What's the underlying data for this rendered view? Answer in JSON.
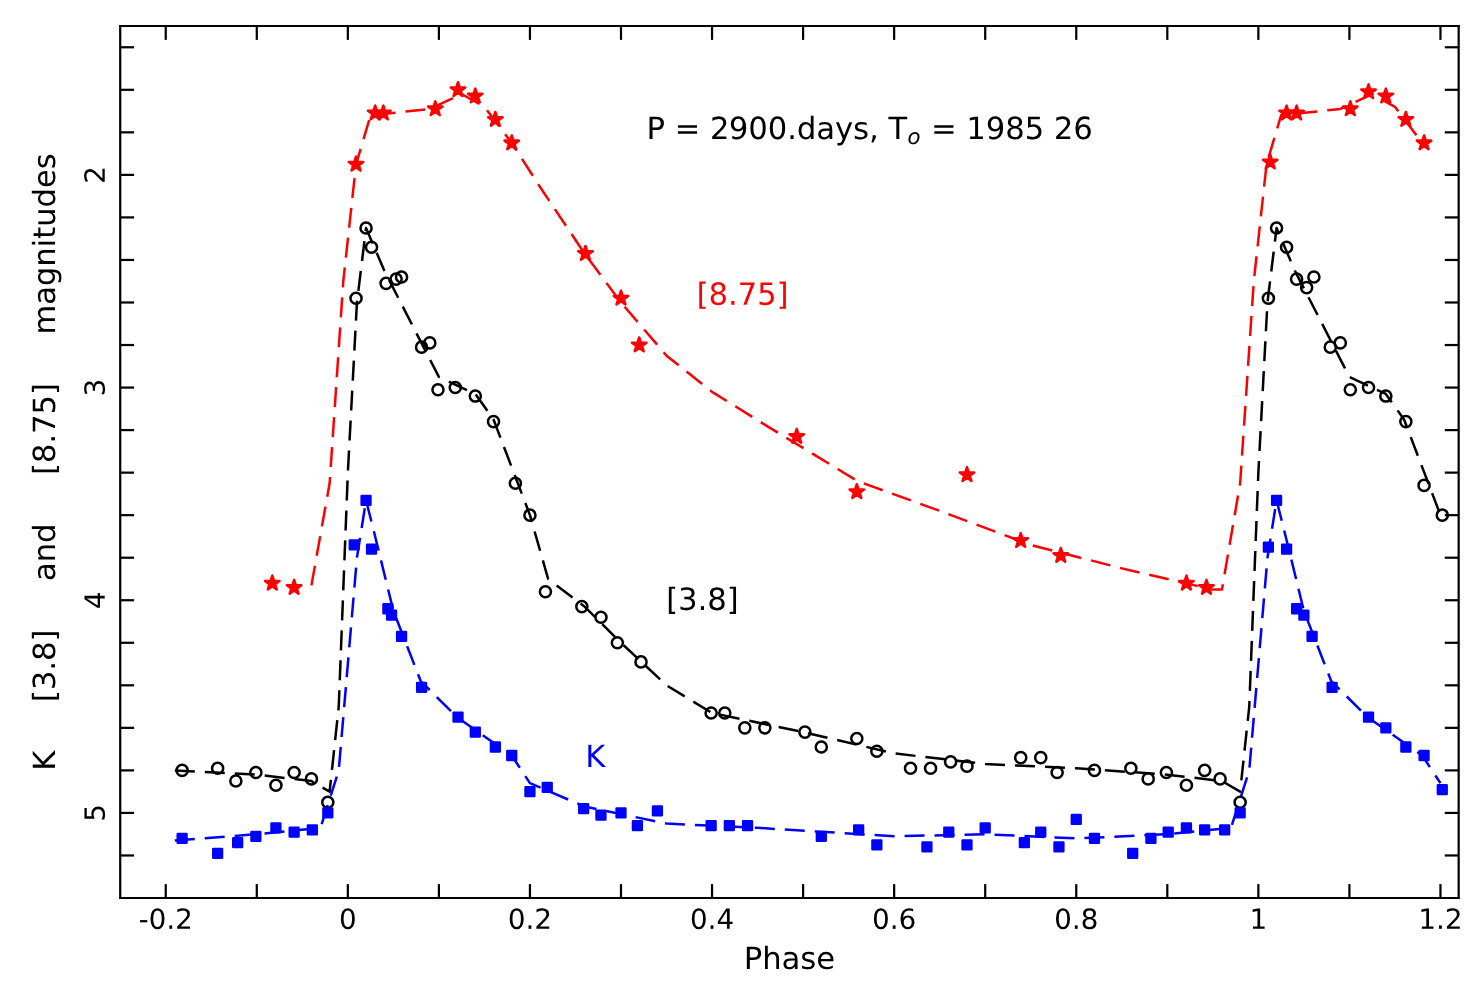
{
  "chart_data": {
    "type": "scatter",
    "xlabel": "Phase",
    "ylabel": "K     [3.8]     and     [8.75]     magnitudes",
    "xlim": [
      -0.25,
      1.22
    ],
    "ylim": [
      5.4,
      1.3
    ],
    "xticks": [
      -0.2,
      {
        "value": -0.1,
        "label": null
      },
      0,
      {
        "value": 0.1,
        "label": null
      },
      0.2,
      {
        "value": 0.3,
        "label": null
      },
      0.4,
      {
        "value": 0.5,
        "label": null
      },
      0.6,
      {
        "value": 0.7,
        "label": null
      },
      0.8,
      {
        "value": 0.9,
        "label": null
      },
      1,
      {
        "value": 1.1,
        "label": null
      },
      1.2
    ],
    "yticks": [
      {
        "value": 1.4,
        "label": null
      },
      {
        "value": 1.6,
        "label": null
      },
      {
        "value": 1.8,
        "label": null
      },
      2,
      {
        "value": 2.2,
        "label": null
      },
      {
        "value": 2.4,
        "label": null
      },
      {
        "value": 2.6,
        "label": null
      },
      {
        "value": 2.8,
        "label": null
      },
      3,
      {
        "value": 3.2,
        "label": null
      },
      {
        "value": 3.4,
        "label": null
      },
      {
        "value": 3.6,
        "label": null
      },
      {
        "value": 3.8,
        "label": null
      },
      4,
      {
        "value": 4.2,
        "label": null
      },
      {
        "value": 4.4,
        "label": null
      },
      {
        "value": 4.6,
        "label": null
      },
      {
        "value": 4.8,
        "label": null
      },
      5,
      {
        "value": 5.2,
        "label": null
      }
    ],
    "grid": false,
    "series": [
      {
        "name": "[8.75]",
        "color": "#ff0000",
        "marker": "star",
        "x": [
          -0.083,
          -0.059,
          0.009,
          0.03,
          0.039,
          0.096,
          0.121,
          0.14,
          0.162,
          0.18,
          0.261,
          0.3,
          0.32,
          0.493,
          0.559,
          0.68,
          0.739,
          0.783,
          0.921,
          0.943,
          1.013,
          1.031,
          1.042,
          1.101,
          1.121,
          1.14,
          1.162,
          1.182
        ],
        "values": [
          3.92,
          3.94,
          1.95,
          1.71,
          1.71,
          1.69,
          1.6,
          1.63,
          1.74,
          1.85,
          2.37,
          2.58,
          2.8,
          3.23,
          3.49,
          3.41,
          3.72,
          3.79,
          3.92,
          3.94,
          1.94,
          1.71,
          1.71,
          1.69,
          1.61,
          1.63,
          1.74,
          1.85
        ]
      },
      {
        "name": "[3.8]",
        "color": "#000000",
        "marker": "circle",
        "x": [
          -0.182,
          -0.143,
          -0.123,
          -0.101,
          -0.079,
          -0.059,
          -0.04,
          -0.022,
          0.009,
          0.02,
          0.026,
          0.042,
          0.053,
          0.059,
          0.081,
          0.09,
          0.099,
          0.118,
          0.14,
          0.16,
          0.184,
          0.2,
          0.217,
          0.257,
          0.278,
          0.296,
          0.322,
          0.399,
          0.414,
          0.436,
          0.458,
          0.502,
          0.52,
          0.559,
          0.581,
          0.618,
          0.64,
          0.662,
          0.68,
          0.739,
          0.761,
          0.779,
          0.82,
          0.86,
          0.879,
          0.899,
          0.921,
          0.941,
          0.958,
          0.98,
          1.011,
          1.02,
          1.031,
          1.042,
          1.053,
          1.061,
          1.079,
          1.09,
          1.101,
          1.121,
          1.14,
          1.162,
          1.182,
          1.202
        ],
        "values": [
          4.8,
          4.79,
          4.85,
          4.81,
          4.87,
          4.81,
          4.84,
          4.95,
          2.58,
          2.25,
          2.34,
          2.51,
          2.49,
          2.48,
          2.81,
          2.79,
          3.01,
          3.0,
          3.04,
          3.16,
          3.45,
          3.6,
          3.96,
          4.03,
          4.08,
          4.2,
          4.29,
          4.53,
          4.53,
          4.6,
          4.6,
          4.62,
          4.69,
          4.65,
          4.71,
          4.79,
          4.79,
          4.76,
          4.78,
          4.74,
          4.74,
          4.81,
          4.8,
          4.79,
          4.84,
          4.81,
          4.87,
          4.8,
          4.84,
          4.95,
          2.58,
          2.25,
          2.34,
          2.49,
          2.53,
          2.48,
          2.81,
          2.79,
          3.01,
          3.0,
          3.04,
          3.16,
          3.46,
          3.6
        ]
      },
      {
        "name": "K",
        "color": "#0000ff",
        "marker": "square",
        "x": [
          -0.182,
          -0.143,
          -0.121,
          -0.101,
          -0.079,
          -0.059,
          -0.039,
          -0.022,
          0.007,
          0.02,
          0.026,
          0.044,
          0.048,
          0.059,
          0.081,
          0.121,
          0.14,
          0.162,
          0.18,
          0.2,
          0.219,
          0.259,
          0.278,
          0.3,
          0.318,
          0.34,
          0.399,
          0.419,
          0.439,
          0.52,
          0.561,
          0.581,
          0.636,
          0.66,
          0.68,
          0.7,
          0.743,
          0.761,
          0.781,
          0.8,
          0.82,
          0.862,
          0.882,
          0.901,
          0.921,
          0.941,
          0.963,
          0.98,
          1.011,
          1.02,
          1.031,
          1.042,
          1.05,
          1.059,
          1.081,
          1.121,
          1.14,
          1.162,
          1.182,
          1.202
        ],
        "values": [
          5.12,
          5.19,
          5.14,
          5.11,
          5.07,
          5.09,
          5.08,
          5.0,
          3.74,
          3.53,
          3.76,
          4.04,
          4.07,
          4.17,
          4.41,
          4.55,
          4.62,
          4.69,
          4.73,
          4.9,
          4.88,
          4.98,
          5.01,
          5.0,
          5.06,
          4.99,
          5.06,
          5.06,
          5.06,
          5.11,
          5.08,
          5.15,
          5.16,
          5.09,
          5.15,
          5.07,
          5.14,
          5.09,
          5.16,
          5.03,
          5.12,
          5.19,
          5.12,
          5.09,
          5.07,
          5.08,
          5.08,
          5.0,
          3.75,
          3.53,
          3.76,
          4.04,
          4.07,
          4.17,
          4.41,
          4.55,
          4.6,
          4.69,
          4.73,
          4.89
        ]
      },
      {
        "type": "line",
        "color": "#ff0000",
        "line_style": "dashed",
        "x": [
          -0.04,
          -0.02,
          -0.005,
          0.009,
          0.025,
          0.09,
          0.125,
          0.15,
          0.18,
          0.21,
          0.26,
          0.3,
          0.35,
          0.4,
          0.46,
          0.56,
          0.65,
          0.75,
          0.85,
          0.95,
          0.96,
          0.98,
          0.995,
          1.009,
          1.025,
          1.09,
          1.125,
          1.15,
          1.18
        ],
        "values": [
          3.93,
          3.45,
          2.5,
          1.95,
          1.72,
          1.69,
          1.62,
          1.68,
          1.85,
          2.05,
          2.37,
          2.6,
          2.85,
          3.02,
          3.18,
          3.44,
          3.58,
          3.74,
          3.85,
          3.95,
          3.95,
          3.45,
          2.5,
          1.95,
          1.72,
          1.69,
          1.62,
          1.68,
          1.85
        ]
      },
      {
        "type": "line",
        "color": "#000000",
        "line_style": "dashed",
        "x": [
          -0.19,
          -0.1,
          -0.04,
          -0.02,
          -0.01,
          0.0,
          0.01,
          0.02,
          0.04,
          0.07,
          0.1,
          0.14,
          0.16,
          0.2,
          0.22,
          0.26,
          0.3,
          0.35,
          0.4,
          0.5,
          0.6,
          0.7,
          0.8,
          0.9,
          0.96,
          0.98,
          0.99,
          1.0,
          1.01,
          1.02,
          1.04,
          1.07,
          1.1,
          1.14,
          1.16,
          1.2
        ],
        "values": [
          4.8,
          4.82,
          4.85,
          4.9,
          4.5,
          3.4,
          2.6,
          2.25,
          2.45,
          2.7,
          2.95,
          3.03,
          3.15,
          3.6,
          3.9,
          4.03,
          4.2,
          4.4,
          4.53,
          4.62,
          4.72,
          4.77,
          4.79,
          4.82,
          4.85,
          4.9,
          4.5,
          3.4,
          2.6,
          2.25,
          2.45,
          2.7,
          2.95,
          3.03,
          3.15,
          3.6
        ]
      },
      {
        "type": "line",
        "color": "#0000ff",
        "line_style": "dashed",
        "x": [
          -0.19,
          -0.1,
          -0.03,
          -0.01,
          0.0,
          0.01,
          0.02,
          0.03,
          0.05,
          0.08,
          0.12,
          0.18,
          0.2,
          0.26,
          0.35,
          0.45,
          0.6,
          0.7,
          0.8,
          0.9,
          0.97,
          0.99,
          1.0,
          1.01,
          1.02,
          1.03,
          1.05,
          1.08,
          1.12,
          1.18,
          1.2
        ],
        "values": [
          5.13,
          5.1,
          5.07,
          4.8,
          4.3,
          3.8,
          3.53,
          3.7,
          4.05,
          4.38,
          4.55,
          4.73,
          4.86,
          4.97,
          5.05,
          5.07,
          5.11,
          5.1,
          5.12,
          5.1,
          5.07,
          4.8,
          4.3,
          3.8,
          3.53,
          3.7,
          4.05,
          4.38,
          4.55,
          4.73,
          4.86
        ]
      }
    ],
    "annotations": [
      "P = 2900.days, T$_{o}$ = 1985 26"
    ]
  }
}
